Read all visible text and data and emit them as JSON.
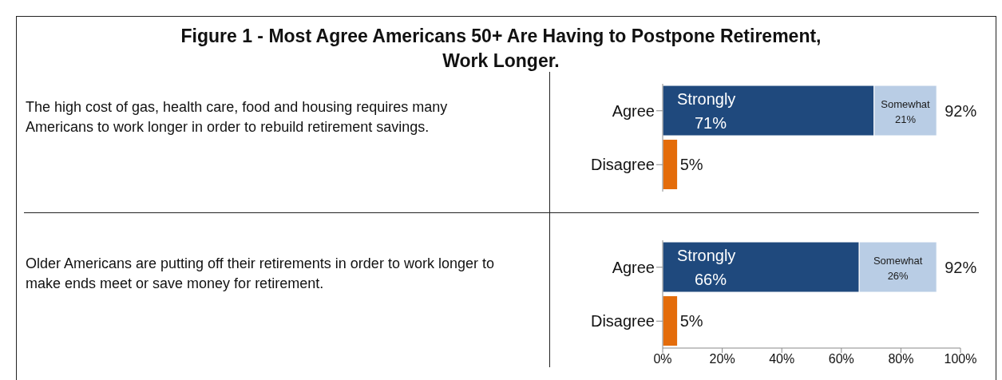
{
  "chart_data": [
    {
      "type": "bar",
      "orientation": "horizontal",
      "stacked": true,
      "title": "Figure 1 - Most Agree Americans 50+ Are Having to Postpone Retirement, Work Longer.",
      "annotations": [
        "The high cost of gas, health care, food and housing requires many Americans to work longer in order to rebuild retirement savings."
      ],
      "categories": [
        "Agree",
        "Disagree"
      ],
      "series": [
        {
          "name": "Strongly",
          "color": "#1f497d",
          "values": [
            71,
            null
          ],
          "value_labels": [
            "71%",
            null
          ]
        },
        {
          "name": "Somewhat",
          "color": "#b9cde5",
          "values": [
            21,
            null
          ],
          "value_labels": [
            "21%",
            null
          ]
        },
        {
          "color": "#e46c0a",
          "values": [
            null,
            5
          ],
          "value_labels": [
            null,
            "5%"
          ]
        }
      ],
      "totals": [
        "92%",
        null
      ],
      "xlim": [
        0,
        100
      ],
      "tick_labels": "y",
      "grid": false,
      "legend": false
    },
    {
      "type": "bar",
      "orientation": "horizontal",
      "stacked": true,
      "annotations": [
        "Older Americans are putting off their retirements in order to work longer to make ends meet or save money for retirement."
      ],
      "categories": [
        "Agree",
        "Disagree"
      ],
      "series": [
        {
          "name": "Strongly",
          "color": "#1f497d",
          "values": [
            66,
            null
          ],
          "value_labels": [
            "66%",
            null
          ]
        },
        {
          "name": "Somewhat",
          "color": "#b9cde5",
          "values": [
            26,
            null
          ],
          "value_labels": [
            "26%",
            null
          ]
        },
        {
          "color": "#e46c0a",
          "values": [
            null,
            5
          ],
          "value_labels": [
            null,
            "5%"
          ]
        }
      ],
      "totals": [
        "92%",
        null
      ],
      "xlim": [
        0,
        100
      ],
      "xticks": [
        {
          "value": 0,
          "label": "0%"
        },
        {
          "value": 20,
          "label": "20%"
        },
        {
          "value": 40,
          "label": "40%"
        },
        {
          "value": 60,
          "label": "60%"
        },
        {
          "value": 80,
          "label": "80%"
        },
        {
          "value": 100,
          "label": "100%"
        }
      ],
      "grid": false,
      "legend": false
    }
  ]
}
